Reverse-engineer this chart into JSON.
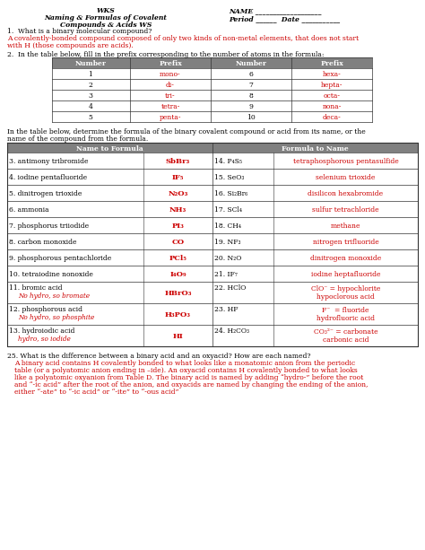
{
  "red": "#CC0000",
  "black": "#000000",
  "bg": "#ffffff",
  "header_bg": "#808080",
  "prefix_rows": [
    [
      "1",
      "mono-",
      "6",
      "hexa-"
    ],
    [
      "2",
      "di-",
      "7",
      "hepta-"
    ],
    [
      "3",
      "tri-",
      "8",
      "octa-"
    ],
    [
      "4",
      "tetra-",
      "9",
      "nona-"
    ],
    [
      "5",
      "penta-",
      "10",
      "deca-"
    ]
  ],
  "main_rows": [
    {
      "num": "3.",
      "name": "antimony tribromide",
      "formula": "SbBr₃",
      "rnum": "14.",
      "rformula": "P₄S₅",
      "rname": "tetraphosphorous pentasulfide",
      "rname2": ""
    },
    {
      "num": "4.",
      "name": "iodine pentafluoride",
      "formula": "IF₅",
      "rnum": "15.",
      "rformula": "SeO₃",
      "rname": "selenium trioxide",
      "rname2": ""
    },
    {
      "num": "5.",
      "name": "dinitrogen trioxide",
      "formula": "N₂O₃",
      "rnum": "16.",
      "rformula": "Si₂Br₆",
      "rname": "disilicon hexabromide",
      "rname2": ""
    },
    {
      "num": "6.",
      "name": "ammonia",
      "formula": "NH₃",
      "rnum": "17.",
      "rformula": "SCl₄",
      "rname": "sulfur tetrachloride",
      "rname2": ""
    },
    {
      "num": "7.",
      "name": "phosphorus triiodide",
      "formula": "PI₃",
      "rnum": "18.",
      "rformula": "CH₄",
      "rname": "methane",
      "rname2": ""
    },
    {
      "num": "8.",
      "name": "carbon monoxide",
      "formula": "CO",
      "rnum": "19.",
      "rformula": "NF₃",
      "rname": "nitrogen trifluoride",
      "rname2": ""
    },
    {
      "num": "9.",
      "name": "phosphorous pentachloride",
      "formula": "PCl₅",
      "rnum": "20.",
      "rformula": "N₂O",
      "rname": "dinitrogen monoxide",
      "rname2": ""
    },
    {
      "num": "10.",
      "name": "tetraiodine nonoxide",
      "formula": "I₄O₉",
      "rnum": "21.",
      "rformula": "IF₇",
      "rname": "iodine heptafluoride",
      "rname2": ""
    },
    {
      "num": "11.",
      "name": "bromic acid",
      "name2": "No hydro, so bromate",
      "formula": "HBrO₃",
      "rnum": "22.",
      "rformula": "HClO",
      "rname": "ClO⁻ = hypochlorite",
      "rname2": "hypoclorous acid"
    },
    {
      "num": "12.",
      "name": "phosphorous acid",
      "name2": "No hydro, so phosphite",
      "formula": "H₃PO₃",
      "rnum": "23.",
      "rformula": "HF",
      "rname": "F⁻  = fluoride",
      "rname2": "hydrofluoric acid"
    },
    {
      "num": "13.",
      "name": "hydroiodic acid",
      "name2": "hydro, so iodide",
      "formula": "HI",
      "rnum": "24.",
      "rformula": "H₂CO₃",
      "rname": "CO₃²⁻ = carbonate",
      "rname2": "carbonic acid"
    }
  ]
}
